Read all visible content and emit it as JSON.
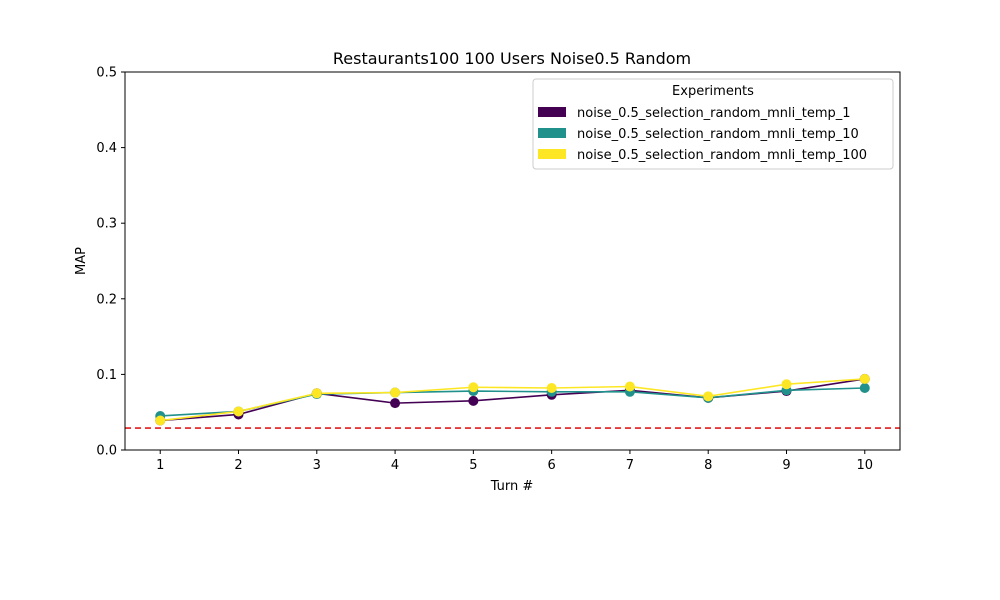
{
  "chart_data": {
    "type": "line",
    "title": "Restaurants100 100 Users Noise0.5 Random",
    "xlabel": "Turn #",
    "ylabel": "MAP",
    "x": [
      1,
      2,
      3,
      4,
      5,
      6,
      7,
      8,
      9,
      10
    ],
    "ylim": [
      0,
      0.5
    ],
    "yticks": [
      "0.0",
      "0.1",
      "0.2",
      "0.3",
      "0.4",
      "0.5"
    ],
    "legend": {
      "title": "Experiments",
      "placement": "top-right"
    },
    "series": [
      {
        "name": "noise_0.5_selection_random_mnli_temp_1",
        "color": "#440154",
        "values": [
          0.039,
          0.047,
          0.075,
          0.062,
          0.065,
          0.073,
          0.079,
          0.069,
          0.078,
          0.094
        ]
      },
      {
        "name": "noise_0.5_selection_random_mnli_temp_10",
        "color": "#21918c",
        "values": [
          0.045,
          0.051,
          0.074,
          0.076,
          0.078,
          0.077,
          0.077,
          0.069,
          0.079,
          0.082
        ]
      },
      {
        "name": "noise_0.5_selection_random_mnli_temp_100",
        "color": "#fde725",
        "values": [
          0.039,
          0.051,
          0.075,
          0.076,
          0.083,
          0.082,
          0.084,
          0.071,
          0.087,
          0.094
        ]
      }
    ],
    "reference_line": {
      "y": 0.029,
      "color": "#e41a1c",
      "style": "dashed"
    },
    "grid": false
  }
}
